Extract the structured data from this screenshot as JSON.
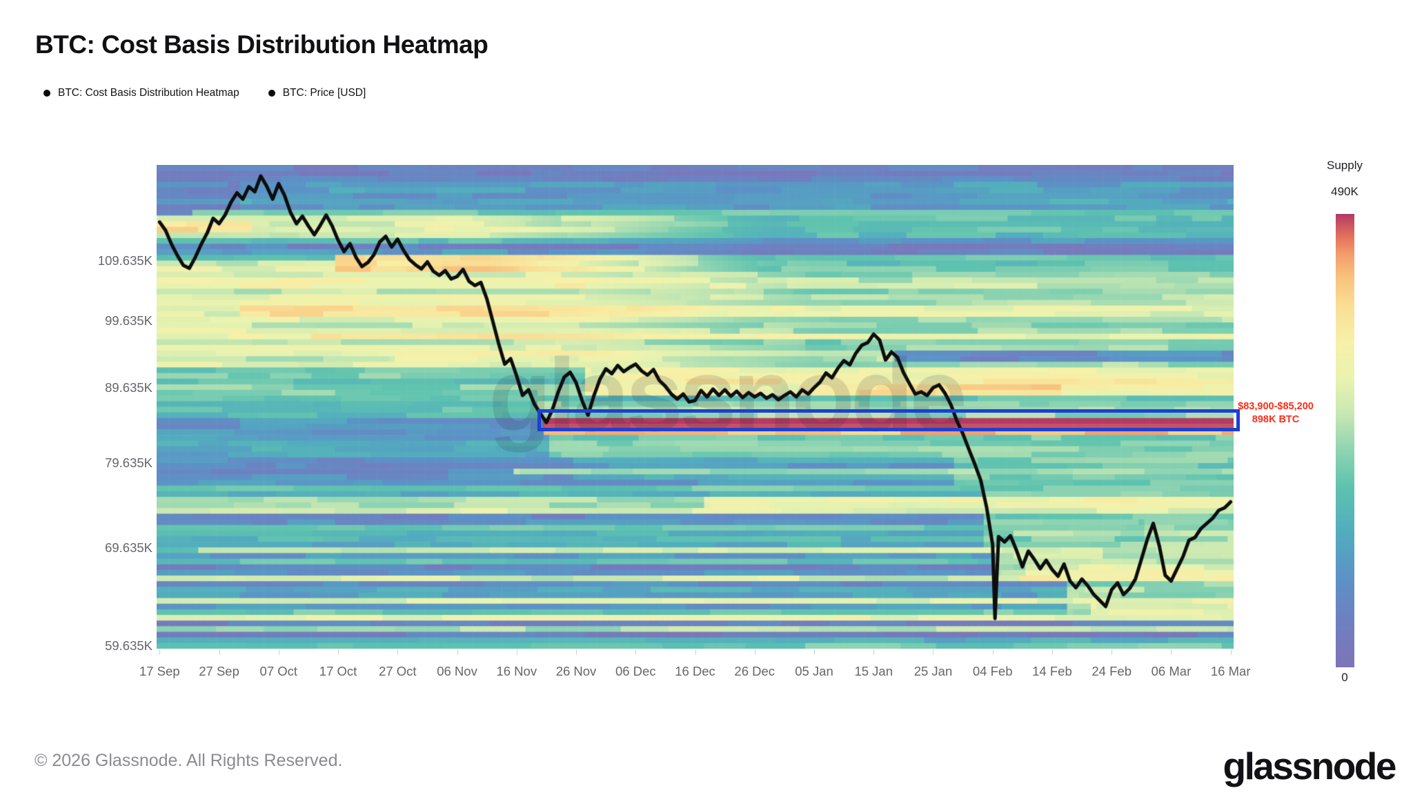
{
  "title": "BTC: Cost Basis Distribution Heatmap",
  "legend": [
    {
      "label": "BTC: Cost Basis Distribution Heatmap"
    },
    {
      "label": "BTC: Price [USD]"
    }
  ],
  "watermark": "glassnode",
  "footer": {
    "copyright": "© 2026 Glassnode. All Rights Reserved.",
    "logo": "glassnode"
  },
  "colorbar": {
    "title": "Supply",
    "max_label": "490K",
    "min_label": "0"
  },
  "annotation": {
    "line1": "$83,900-$85,200",
    "line2": "898K BTC",
    "color": "#fb2e19"
  },
  "colors": {
    "highlight_box": "#1d3fd6",
    "price_line": "#0d0d0d",
    "axis_text": "#66666b"
  },
  "chart_data": {
    "type": "heatmap",
    "title": "BTC: Cost Basis Distribution Heatmap",
    "x_axis": {
      "tick_labels": [
        "17 Sep",
        "27 Sep",
        "07 Oct",
        "17 Oct",
        "27 Oct",
        "06 Nov",
        "16 Nov",
        "26 Nov",
        "06 Dec",
        "16 Dec",
        "26 Dec",
        "05 Jan",
        "15 Jan",
        "25 Jan",
        "04 Feb",
        "14 Feb",
        "24 Feb",
        "06 Mar",
        "16 Mar"
      ],
      "tick_days": [
        0,
        10,
        20,
        30,
        40,
        50,
        60,
        70,
        80,
        90,
        100,
        110,
        120,
        130,
        140,
        150,
        160,
        170,
        180
      ],
      "days_total": 181
    },
    "y_axis": {
      "scale": "log",
      "unit": "USD (K)",
      "tick_labels": [
        "109.635K",
        "99.635K",
        "89.635K",
        "79.635K",
        "69.635K",
        "59.635K"
      ],
      "tick_prices_k": [
        109.635,
        99.635,
        89.635,
        79.635,
        69.635,
        59.635
      ],
      "price_top_k": 127.5,
      "price_bottom_k": 59.4
    },
    "supply_scale": {
      "label": "Supply",
      "min_btc": 0,
      "max_btc": 490000
    },
    "highlighted_region": {
      "price_range_usd": "$83,900-$85,200",
      "supply_btc": "898K BTC",
      "day_start": 64,
      "price_top_k": 86.7,
      "price_bottom_k": 83.75
    },
    "price_line_name": "BTC: Price [USD]",
    "price_series_k": [
      [
        0,
        116.5
      ],
      [
        1,
        115
      ],
      [
        2,
        112.5
      ],
      [
        3,
        110.5
      ],
      [
        4,
        108.8
      ],
      [
        5,
        108.3
      ],
      [
        6,
        110.2
      ],
      [
        7,
        112.5
      ],
      [
        8,
        114.5
      ],
      [
        9,
        117.2
      ],
      [
        10,
        116.2
      ],
      [
        11,
        117.8
      ],
      [
        12,
        120.2
      ],
      [
        13,
        122
      ],
      [
        14,
        120.8
      ],
      [
        15,
        123.2
      ],
      [
        16,
        122.2
      ],
      [
        17,
        125.3
      ],
      [
        18,
        123.3
      ],
      [
        19,
        120.8
      ],
      [
        20,
        123.8
      ],
      [
        21,
        121.5
      ],
      [
        22,
        118.3
      ],
      [
        23,
        116.2
      ],
      [
        24,
        117.6
      ],
      [
        25,
        115.8
      ],
      [
        26,
        114.2
      ],
      [
        27,
        115.9
      ],
      [
        28,
        117.8
      ],
      [
        29,
        115.8
      ],
      [
        30,
        113.2
      ],
      [
        31,
        111.2
      ],
      [
        32,
        112.6
      ],
      [
        33,
        110.2
      ],
      [
        34,
        108.6
      ],
      [
        35,
        109.3
      ],
      [
        36,
        110.6
      ],
      [
        37,
        112.9
      ],
      [
        38,
        113.9
      ],
      [
        39,
        112
      ],
      [
        40,
        113.4
      ],
      [
        41,
        111.4
      ],
      [
        42,
        109.8
      ],
      [
        43,
        108.9
      ],
      [
        44,
        108.2
      ],
      [
        45,
        109.4
      ],
      [
        46,
        107.8
      ],
      [
        47,
        107.1
      ],
      [
        48,
        107.9
      ],
      [
        49,
        106.5
      ],
      [
        50,
        106.9
      ],
      [
        51,
        108.1
      ],
      [
        52,
        106.1
      ],
      [
        53,
        105.4
      ],
      [
        54,
        105.9
      ],
      [
        55,
        103.2
      ],
      [
        56,
        99.6
      ],
      [
        57,
        96.1
      ],
      [
        58,
        93.1
      ],
      [
        59,
        93.9
      ],
      [
        60,
        91.4
      ],
      [
        61,
        88.6
      ],
      [
        62,
        89.4
      ],
      [
        63,
        87.4
      ],
      [
        64,
        86.1
      ],
      [
        65,
        84.9
      ],
      [
        66,
        86.6
      ],
      [
        67,
        89.1
      ],
      [
        68,
        91.2
      ],
      [
        69,
        91.9
      ],
      [
        70,
        90.4
      ],
      [
        71,
        87.9
      ],
      [
        72,
        85.9
      ],
      [
        73,
        88.6
      ],
      [
        74,
        90.9
      ],
      [
        75,
        92.4
      ],
      [
        76,
        91.7
      ],
      [
        77,
        92.9
      ],
      [
        78,
        92
      ],
      [
        79,
        92.6
      ],
      [
        80,
        93.1
      ],
      [
        81,
        92.1
      ],
      [
        82,
        91.5
      ],
      [
        83,
        92.3
      ],
      [
        84,
        90.7
      ],
      [
        85,
        89.9
      ],
      [
        86,
        88.8
      ],
      [
        87,
        88.1
      ],
      [
        88,
        88.8
      ],
      [
        89,
        87.7
      ],
      [
        90,
        87.9
      ],
      [
        91,
        89.3
      ],
      [
        92,
        88.4
      ],
      [
        93,
        89.5
      ],
      [
        94,
        88.6
      ],
      [
        95,
        89.4
      ],
      [
        96,
        88.5
      ],
      [
        97,
        89.2
      ],
      [
        98,
        88.3
      ],
      [
        99,
        89
      ],
      [
        100,
        88.4
      ],
      [
        101,
        88.9
      ],
      [
        102,
        88.2
      ],
      [
        103,
        88.7
      ],
      [
        104,
        88
      ],
      [
        105,
        88.6
      ],
      [
        106,
        89.1
      ],
      [
        107,
        88.4
      ],
      [
        108,
        89.4
      ],
      [
        109,
        88.8
      ],
      [
        110,
        89.7
      ],
      [
        111,
        90.5
      ],
      [
        112,
        91.8
      ],
      [
        113,
        91.1
      ],
      [
        114,
        92.5
      ],
      [
        115,
        93.6
      ],
      [
        116,
        93
      ],
      [
        117,
        94.7
      ],
      [
        118,
        95.9
      ],
      [
        119,
        96.3
      ],
      [
        120,
        97.6
      ],
      [
        121,
        96.7
      ],
      [
        122,
        93.7
      ],
      [
        123,
        94.9
      ],
      [
        124,
        94.1
      ],
      [
        125,
        91.9
      ],
      [
        126,
        90.3
      ],
      [
        127,
        88.8
      ],
      [
        128,
        89.1
      ],
      [
        129,
        88.6
      ],
      [
        130,
        89.7
      ],
      [
        131,
        90.1
      ],
      [
        132,
        88.9
      ],
      [
        133,
        87.3
      ],
      [
        134,
        85.1
      ],
      [
        135,
        83.4
      ],
      [
        136,
        81.4
      ],
      [
        137,
        79.5
      ],
      [
        138,
        77.5
      ],
      [
        139,
        74.2
      ],
      [
        140,
        70
      ],
      [
        140.4,
        62.3
      ],
      [
        141,
        70.9
      ],
      [
        142,
        70.3
      ],
      [
        143,
        71
      ],
      [
        144,
        69.4
      ],
      [
        145,
        67.6
      ],
      [
        146,
        69.3
      ],
      [
        147,
        68.4
      ],
      [
        148,
        67.4
      ],
      [
        149,
        68.3
      ],
      [
        150,
        67.3
      ],
      [
        151,
        66.6
      ],
      [
        152,
        67.9
      ],
      [
        153,
        66.1
      ],
      [
        154,
        65.4
      ],
      [
        155,
        66.3
      ],
      [
        156,
        65.6
      ],
      [
        157,
        64.7
      ],
      [
        158,
        64.1
      ],
      [
        159,
        63.5
      ],
      [
        160,
        65.2
      ],
      [
        161,
        65.9
      ],
      [
        162,
        64.7
      ],
      [
        163,
        65.3
      ],
      [
        164,
        66.3
      ],
      [
        165,
        68.4
      ],
      [
        166,
        70.6
      ],
      [
        167,
        72.4
      ],
      [
        168,
        69.9
      ],
      [
        169,
        66.7
      ],
      [
        170,
        66.1
      ],
      [
        171,
        67.4
      ],
      [
        172,
        68.7
      ],
      [
        173,
        70.5
      ],
      [
        174,
        70.8
      ],
      [
        175,
        71.8
      ],
      [
        176,
        72.4
      ],
      [
        177,
        73
      ],
      [
        178,
        73.9
      ],
      [
        179,
        74.2
      ],
      [
        180,
        74.9
      ]
    ],
    "heatmap_model": {
      "rows": 86,
      "seed": 11,
      "jitter": 0.13,
      "zones": [
        [
          118,
          128,
          0.13,
          0.05
        ],
        [
          112,
          118,
          0.16,
          0.07
        ],
        [
          109,
          112,
          0.3,
          0.1
        ],
        [
          104,
          109,
          0.45,
          0.12
        ],
        [
          93,
          104,
          0.58,
          0.09
        ],
        [
          88,
          93,
          0.38,
          0.09
        ],
        [
          85.2,
          88,
          0.36,
          0.07
        ],
        [
          83.9,
          85.2,
          0.22,
          0.03
        ],
        [
          80,
          83.9,
          0.26,
          0.07
        ],
        [
          75,
          80,
          0.24,
          0.09
        ],
        [
          68,
          75,
          0.22,
          0.11
        ],
        [
          59,
          68,
          0.2,
          0.11
        ]
      ],
      "events": [
        [
          118.5,
          124.5,
          14,
          181,
          0.24,
          0
        ],
        [
          116,
          118.5,
          6,
          181,
          0.45,
          0
        ],
        [
          113.5,
          117.5,
          0,
          181,
          0.62,
          0
        ],
        [
          114.8,
          116.2,
          0,
          16,
          0.78,
          0
        ],
        [
          97,
          110,
          0,
          181,
          0.6,
          0
        ],
        [
          107.5,
          110.8,
          30,
          181,
          0.8,
          0
        ],
        [
          100.3,
          102,
          14,
          181,
          0.78,
          0
        ],
        [
          105,
          106.6,
          0,
          181,
          0.7,
          0
        ],
        [
          96.4,
          97.6,
          26,
          181,
          0.76,
          0
        ],
        [
          93.5,
          95,
          40,
          181,
          0.68,
          0
        ],
        [
          88.3,
          92.6,
          72,
          181,
          0.64,
          0
        ],
        [
          90.1,
          91.3,
          76,
          181,
          0.72,
          0
        ],
        [
          88.6,
          89.8,
          108,
          152,
          0.76,
          0
        ],
        [
          85.2,
          88,
          64,
          181,
          0.5,
          0
        ],
        [
          83.9,
          85.2,
          65,
          181,
          1.0,
          0
        ],
        [
          82.9,
          83.9,
          65,
          181,
          0.88,
          0
        ],
        [
          80.6,
          82.9,
          66,
          181,
          0.44,
          0
        ],
        [
          93.2,
          94.9,
          124,
          181,
          0.2,
          1
        ],
        [
          77.3,
          80.6,
          0,
          70,
          0.17,
          1
        ],
        [
          76,
          80,
          134,
          181,
          0.42,
          0
        ],
        [
          69,
          76,
          139,
          181,
          0.46,
          0
        ],
        [
          66,
          69.6,
          141,
          181,
          0.55,
          0
        ],
        [
          66.4,
          67.6,
          146,
          181,
          0.66,
          0
        ],
        [
          62,
          66,
          153,
          181,
          0.48,
          0
        ],
        [
          63,
          64.2,
          157,
          181,
          0.64,
          0
        ],
        [
          70,
          73,
          166,
          181,
          0.52,
          0
        ]
      ],
      "fades": [
        [
          93,
          112,
          70,
          0.005,
          0.8
        ],
        [
          108,
          118,
          55,
          0.008,
          0.62
        ]
      ],
      "stripes": [
        [
          112.9,
          0.34,
          0
        ],
        [
          78.5,
          0.5,
          60
        ],
        [
          76.8,
          0.42,
          0
        ],
        [
          74.8,
          0.5,
          0
        ],
        [
          74.8,
          0.66,
          92
        ],
        [
          73.8,
          0.6,
          0
        ],
        [
          72.1,
          0.42,
          0
        ],
        [
          70.9,
          0.35,
          0
        ],
        [
          69.6,
          0.55,
          7
        ],
        [
          68.1,
          0.38,
          0
        ],
        [
          66.3,
          0.56,
          0
        ],
        [
          66.3,
          0.68,
          145
        ],
        [
          64.2,
          0.62,
          0
        ],
        [
          63.1,
          0.4,
          0
        ],
        [
          63.1,
          0.62,
          157
        ],
        [
          62.4,
          0.64,
          0
        ],
        [
          61.2,
          0.5,
          0
        ],
        [
          59.9,
          0.42,
          0
        ]
      ],
      "colormap": [
        [
          0.0,
          "#7e74b7"
        ],
        [
          0.1,
          "#6f7fc0"
        ],
        [
          0.2,
          "#5b93c6"
        ],
        [
          0.3,
          "#52adbe"
        ],
        [
          0.4,
          "#5fc3af"
        ],
        [
          0.48,
          "#8fd4b2"
        ],
        [
          0.56,
          "#c8e8b2"
        ],
        [
          0.64,
          "#eaf3af"
        ],
        [
          0.72,
          "#f7f0a8"
        ],
        [
          0.8,
          "#f9dd94"
        ],
        [
          0.86,
          "#f8c27d"
        ],
        [
          0.91,
          "#f29e6b"
        ],
        [
          0.95,
          "#e4715c"
        ],
        [
          1.0,
          "#b23a66"
        ]
      ]
    }
  }
}
